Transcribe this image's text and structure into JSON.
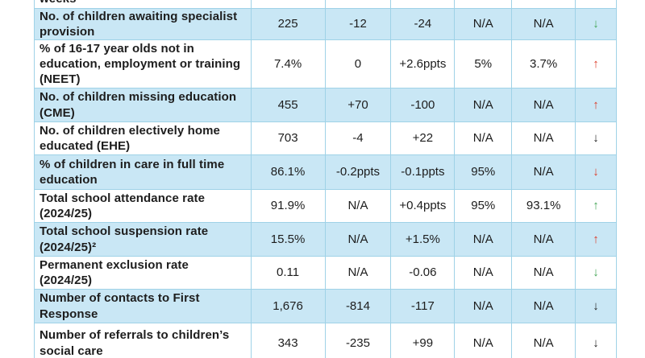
{
  "colors": {
    "row_blue": "#C9E7F5",
    "grid_border": "#9FD2E7",
    "arrow_green": "#44A556",
    "arrow_red": "#DC3A27",
    "arrow_black": "#1F1F1F"
  },
  "table": {
    "partial_row": {
      "label": "weeks"
    },
    "rows": [
      {
        "label": "No. of children awaiting specialist provision",
        "values": [
          "225",
          "-12",
          "-24",
          "N/A",
          "N/A"
        ],
        "arrow": "↓",
        "arrow_color": "#44A556",
        "trend": "down-green"
      },
      {
        "label": "% of 16-17 year olds not in education, employment or training (NEET)",
        "values": [
          "7.4%",
          "0",
          "+2.6ppts",
          "5%",
          "3.7%"
        ],
        "arrow": "↑",
        "arrow_color": "#DC3A27",
        "trend": "up-red"
      },
      {
        "label": "No. of children missing education (CME)",
        "values": [
          "455",
          "+70",
          "-100",
          "N/A",
          "N/A"
        ],
        "arrow": "↑",
        "arrow_color": "#DC3A27",
        "trend": "up-red"
      },
      {
        "label": "No. of children electively home educated (EHE)",
        "values": [
          "703",
          "-4",
          "+22",
          "N/A",
          "N/A"
        ],
        "arrow": "↓",
        "arrow_color": "#1F1F1F",
        "trend": "down-black"
      },
      {
        "label": "% of children in care in full time education",
        "values": [
          "86.1%",
          "-0.2ppts",
          "-0.1ppts",
          "95%",
          "N/A"
        ],
        "arrow": "↓",
        "arrow_color": "#DC3A27",
        "trend": "down-red"
      },
      {
        "label": "Total school attendance rate (2024/25)",
        "values": [
          "91.9%",
          "N/A",
          "+0.4ppts",
          "95%",
          "93.1%"
        ],
        "arrow": "↑",
        "arrow_color": "#44A556",
        "trend": "up-green"
      },
      {
        "label": "Total school suspension rate (2024/25)²",
        "values": [
          "15.5%",
          "N/A",
          "+1.5%",
          "N/A",
          "N/A"
        ],
        "arrow": "↑",
        "arrow_color": "#DC3A27",
        "trend": "up-red"
      },
      {
        "label": "Permanent exclusion rate (2024/25)",
        "values": [
          "0.11",
          "N/A",
          "-0.06",
          "N/A",
          "N/A"
        ],
        "arrow": "↓",
        "arrow_color": "#44A556",
        "trend": "down-green"
      },
      {
        "label": "Number of contacts to First Response",
        "values": [
          "1,676",
          "-814",
          "-117",
          "N/A",
          "N/A"
        ],
        "arrow": "↓",
        "arrow_color": "#1F1F1F",
        "trend": "down-black"
      },
      {
        "label": "Number of referrals to children’s social care",
        "values": [
          "343",
          "-235",
          "+99",
          "N/A",
          "N/A"
        ],
        "arrow": "↓",
        "arrow_color": "#1F1F1F",
        "trend": "down-black"
      }
    ]
  }
}
